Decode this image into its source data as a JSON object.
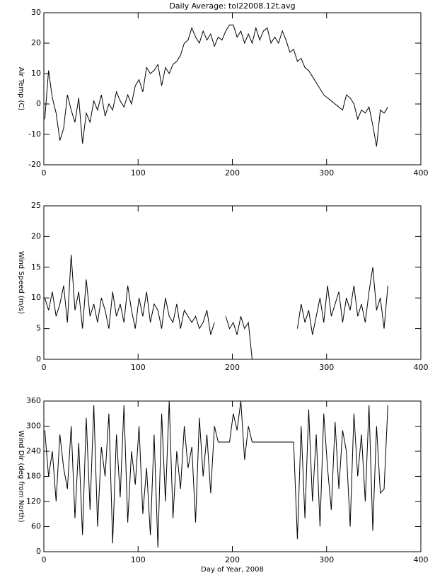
{
  "chart_data": [
    {
      "type": "line",
      "title": "Daily Average: tol22008.12t.avg",
      "y_label": "Air Temp (C)",
      "color": "#000000",
      "x": [
        1,
        5,
        9,
        13,
        17,
        21,
        25,
        29,
        33,
        37,
        41,
        45,
        49,
        53,
        57,
        61,
        65,
        69,
        73,
        77,
        81,
        85,
        89,
        93,
        97,
        101,
        105,
        109,
        113,
        117,
        121,
        125,
        129,
        133,
        137,
        141,
        145,
        149,
        153,
        157,
        161,
        165,
        169,
        173,
        177,
        181,
        185,
        189,
        193,
        197,
        201,
        205,
        209,
        213,
        217,
        221,
        225,
        229,
        233,
        237,
        241,
        245,
        249,
        253,
        257,
        261,
        265,
        269,
        273,
        277,
        281,
        285,
        289,
        293,
        297,
        301,
        305,
        309,
        313,
        317,
        321,
        325,
        329,
        333,
        337,
        341,
        345,
        349,
        353,
        357,
        361,
        365
      ],
      "values": [
        -5,
        11,
        2,
        -3,
        -12,
        -8,
        3,
        -2,
        -6,
        2,
        -13,
        -3,
        -6,
        1,
        -2,
        3,
        -4,
        0,
        -2,
        4,
        1,
        -1,
        3,
        0,
        6,
        8,
        4,
        12,
        10,
        11,
        13,
        6,
        12,
        10,
        13,
        14,
        16,
        20,
        21,
        25,
        22,
        20,
        24,
        21,
        23,
        19,
        22,
        21,
        24,
        26,
        26,
        22,
        24,
        20,
        23,
        20,
        25,
        21,
        24,
        25,
        20,
        22,
        20,
        24,
        21,
        17,
        18,
        14,
        15,
        12,
        11,
        9,
        7,
        5,
        3,
        2,
        1,
        0,
        -1,
        -2,
        3,
        2,
        0,
        -5,
        -2,
        -3,
        -1,
        -7,
        -14,
        -2,
        -3,
        -1
      ],
      "xlim": [
        0,
        400
      ],
      "xticks": [
        0,
        100,
        200,
        300,
        400
      ],
      "ylim": [
        -20,
        30
      ],
      "yticks": [
        -20,
        -10,
        0,
        10,
        20,
        30
      ]
    },
    {
      "type": "line",
      "y_label": "Wind Speed (m/s)",
      "color": "#000000",
      "x": [
        1,
        5,
        9,
        13,
        17,
        21,
        25,
        29,
        33,
        37,
        41,
        45,
        49,
        53,
        57,
        61,
        65,
        69,
        73,
        77,
        81,
        85,
        89,
        93,
        97,
        101,
        105,
        109,
        113,
        117,
        121,
        125,
        129,
        133,
        137,
        141,
        145,
        149,
        153,
        157,
        161,
        165,
        169,
        173,
        177,
        181,
        185,
        189,
        193,
        197,
        201,
        205,
        209,
        213,
        217,
        221,
        225,
        229,
        233,
        237,
        241,
        245,
        249,
        253,
        257,
        261,
        265,
        269,
        273,
        277,
        281,
        285,
        289,
        293,
        297,
        301,
        305,
        309,
        313,
        317,
        321,
        325,
        329,
        333,
        337,
        341,
        345,
        349,
        353,
        357,
        361,
        365
      ],
      "values": [
        10,
        8,
        11,
        7,
        9,
        12,
        6,
        17,
        8,
        11,
        5,
        13,
        7,
        9,
        6,
        10,
        8,
        5,
        11,
        7,
        9,
        6,
        12,
        8,
        5,
        10,
        7,
        11,
        6,
        9,
        8,
        5,
        10,
        7,
        6,
        9,
        5,
        8,
        7,
        6,
        7,
        5,
        6,
        8,
        4,
        6,
        null,
        null,
        7,
        5,
        6,
        4,
        7,
        5,
        6,
        0,
        null,
        null,
        null,
        null,
        null,
        null,
        null,
        null,
        null,
        null,
        null,
        5,
        9,
        6,
        8,
        4,
        7,
        10,
        6,
        12,
        7,
        9,
        11,
        6,
        10,
        8,
        12,
        7,
        9,
        6,
        11,
        15,
        8,
        10,
        5,
        12
      ],
      "xlim": [
        0,
        400
      ],
      "xticks": [
        0,
        100,
        200,
        300,
        400
      ],
      "ylim": [
        0,
        25
      ],
      "yticks": [
        0,
        5,
        10,
        15,
        20,
        25
      ]
    },
    {
      "type": "line",
      "y_label": "Wind Dir (deg from North)",
      "x_label": "Day of Year, 2008",
      "color": "#000000",
      "x": [
        1,
        5,
        9,
        13,
        17,
        21,
        25,
        29,
        33,
        37,
        41,
        45,
        49,
        53,
        57,
        61,
        65,
        69,
        73,
        77,
        81,
        85,
        89,
        93,
        97,
        101,
        105,
        109,
        113,
        117,
        121,
        125,
        129,
        133,
        137,
        141,
        145,
        149,
        153,
        157,
        161,
        165,
        169,
        173,
        177,
        181,
        185,
        189,
        193,
        197,
        201,
        205,
        209,
        213,
        217,
        221,
        225,
        229,
        233,
        237,
        241,
        245,
        249,
        253,
        257,
        261,
        265,
        269,
        273,
        277,
        281,
        285,
        289,
        293,
        297,
        301,
        305,
        309,
        313,
        317,
        321,
        325,
        329,
        333,
        337,
        341,
        345,
        349,
        353,
        357,
        361,
        365
      ],
      "values": [
        290,
        180,
        240,
        120,
        280,
        200,
        150,
        300,
        80,
        260,
        40,
        320,
        100,
        350,
        60,
        250,
        180,
        330,
        20,
        280,
        130,
        350,
        70,
        240,
        160,
        300,
        90,
        200,
        40,
        280,
        10,
        330,
        120,
        360,
        80,
        240,
        150,
        300,
        200,
        250,
        70,
        320,
        180,
        280,
        140,
        300,
        262,
        262,
        262,
        262,
        330,
        290,
        360,
        220,
        300,
        262,
        262,
        262,
        262,
        262,
        262,
        262,
        262,
        262,
        262,
        262,
        262,
        30,
        300,
        80,
        340,
        120,
        280,
        60,
        330,
        200,
        100,
        310,
        150,
        290,
        240,
        60,
        330,
        180,
        280,
        120,
        350,
        50,
        300,
        140,
        150,
        350
      ],
      "xlim": [
        0,
        400
      ],
      "xticks": [
        0,
        100,
        200,
        300,
        400
      ],
      "ylim": [
        0,
        360
      ],
      "yticks": [
        0,
        60,
        120,
        180,
        240,
        300,
        360
      ]
    }
  ]
}
